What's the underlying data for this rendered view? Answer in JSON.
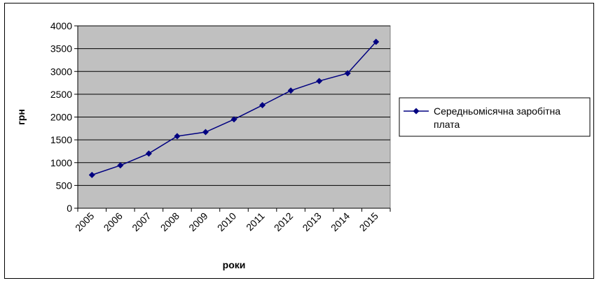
{
  "chart_data": {
    "type": "line",
    "title": "",
    "xlabel": "роки",
    "ylabel": "грн",
    "categories": [
      "2005",
      "2006",
      "2007",
      "2008",
      "2009",
      "2010",
      "2011",
      "2012",
      "2013",
      "2014",
      "2015"
    ],
    "series": [
      {
        "name": "Середньомісячна заробітна плата",
        "values": [
          730,
          940,
          1200,
          1580,
          1670,
          1950,
          2260,
          2580,
          2790,
          2960,
          3650
        ],
        "color": "#000080",
        "marker": "diamond"
      }
    ],
    "ylim": [
      0,
      4000
    ],
    "yticks": [
      0,
      500,
      1000,
      1500,
      2000,
      2500,
      3000,
      3500,
      4000
    ],
    "grid": true,
    "plot_background": "#c0c0c0",
    "legend": {
      "position": "right",
      "lines": [
        "Середньомісячна заробітна",
        "плата"
      ]
    }
  }
}
